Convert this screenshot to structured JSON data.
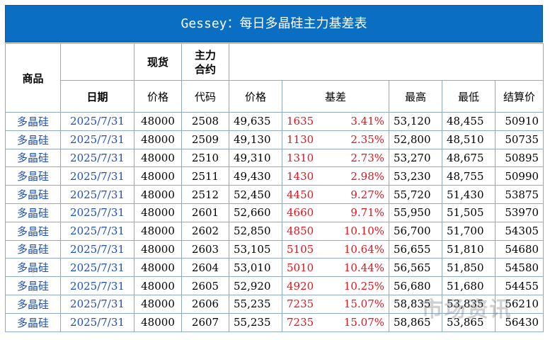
{
  "title": "Gessey：每日多晶硅主力基差表",
  "headers": {
    "product": "商品",
    "spot": "现货",
    "main_contract": "主力\n合约",
    "date": "日期",
    "spot_price": "价格",
    "code": "代码",
    "price": "价格",
    "basis": "基差",
    "high": "最高",
    "low": "最低",
    "settle": "结算价"
  },
  "rows": [
    {
      "product": "多晶硅",
      "date": "2025/7/31",
      "spot": "48000",
      "code": "2508",
      "price": "49,635",
      "basis": "1635",
      "basis_pct": "3.41%",
      "high": "53,120",
      "low": "48,455",
      "settle": "50910"
    },
    {
      "product": "多晶硅",
      "date": "2025/7/31",
      "spot": "48000",
      "code": "2509",
      "price": "49,130",
      "basis": "1130",
      "basis_pct": "2.35%",
      "high": "52,800",
      "low": "48,510",
      "settle": "50735"
    },
    {
      "product": "多晶硅",
      "date": "2025/7/31",
      "spot": "48000",
      "code": "2510",
      "price": "49,310",
      "basis": "1310",
      "basis_pct": "2.73%",
      "high": "53,270",
      "low": "48,675",
      "settle": "50895"
    },
    {
      "product": "多晶硅",
      "date": "2025/7/31",
      "spot": "48000",
      "code": "2511",
      "price": "49,430",
      "basis": "1430",
      "basis_pct": "2.98%",
      "high": "53,230",
      "low": "48,755",
      "settle": "50990"
    },
    {
      "product": "多晶硅",
      "date": "2025/7/31",
      "spot": "48000",
      "code": "2512",
      "price": "52,450",
      "basis": "4450",
      "basis_pct": "9.27%",
      "high": "55,720",
      "low": "51,430",
      "settle": "53875"
    },
    {
      "product": "多晶硅",
      "date": "2025/7/31",
      "spot": "48000",
      "code": "2601",
      "price": "52,660",
      "basis": "4660",
      "basis_pct": "9.71%",
      "high": "55,950",
      "low": "51,505",
      "settle": "53970"
    },
    {
      "product": "多晶硅",
      "date": "2025/7/31",
      "spot": "48000",
      "code": "2602",
      "price": "52,850",
      "basis": "4850",
      "basis_pct": "10.10%",
      "high": "56,700",
      "low": "51,700",
      "settle": "54305"
    },
    {
      "product": "多晶硅",
      "date": "2025/7/31",
      "spot": "48000",
      "code": "2603",
      "price": "53,105",
      "basis": "5105",
      "basis_pct": "10.64%",
      "high": "56,655",
      "low": "51,810",
      "settle": "54680"
    },
    {
      "product": "多晶硅",
      "date": "2025/7/31",
      "spot": "48000",
      "code": "2604",
      "price": "53,010",
      "basis": "5010",
      "basis_pct": "10.44%",
      "high": "56,565",
      "low": "51,850",
      "settle": "54580"
    },
    {
      "product": "多晶硅",
      "date": "2025/7/31",
      "spot": "48000",
      "code": "2605",
      "price": "52,920",
      "basis": "4920",
      "basis_pct": "10.25%",
      "high": "56,680",
      "low": "51,680",
      "settle": "54455"
    },
    {
      "product": "多晶硅",
      "date": "2025/7/31",
      "spot": "48000",
      "code": "2606",
      "price": "55,235",
      "basis": "7235",
      "basis_pct": "15.07%",
      "high": "58,835",
      "low": "53,835",
      "settle": "56210"
    },
    {
      "product": "多晶硅",
      "date": "2025/7/31",
      "spot": "48000",
      "code": "2607",
      "price": "55,235",
      "basis": "7235",
      "basis_pct": "15.07%",
      "high": "58,865",
      "low": "53,865",
      "settle": "56430"
    }
  ],
  "watermark": "市场资讯",
  "colors": {
    "banner": "#0a6fc2",
    "link_blue": "#1f4fb4",
    "basis_red": "#e3141b",
    "grid_border": "#8fa9c9"
  }
}
